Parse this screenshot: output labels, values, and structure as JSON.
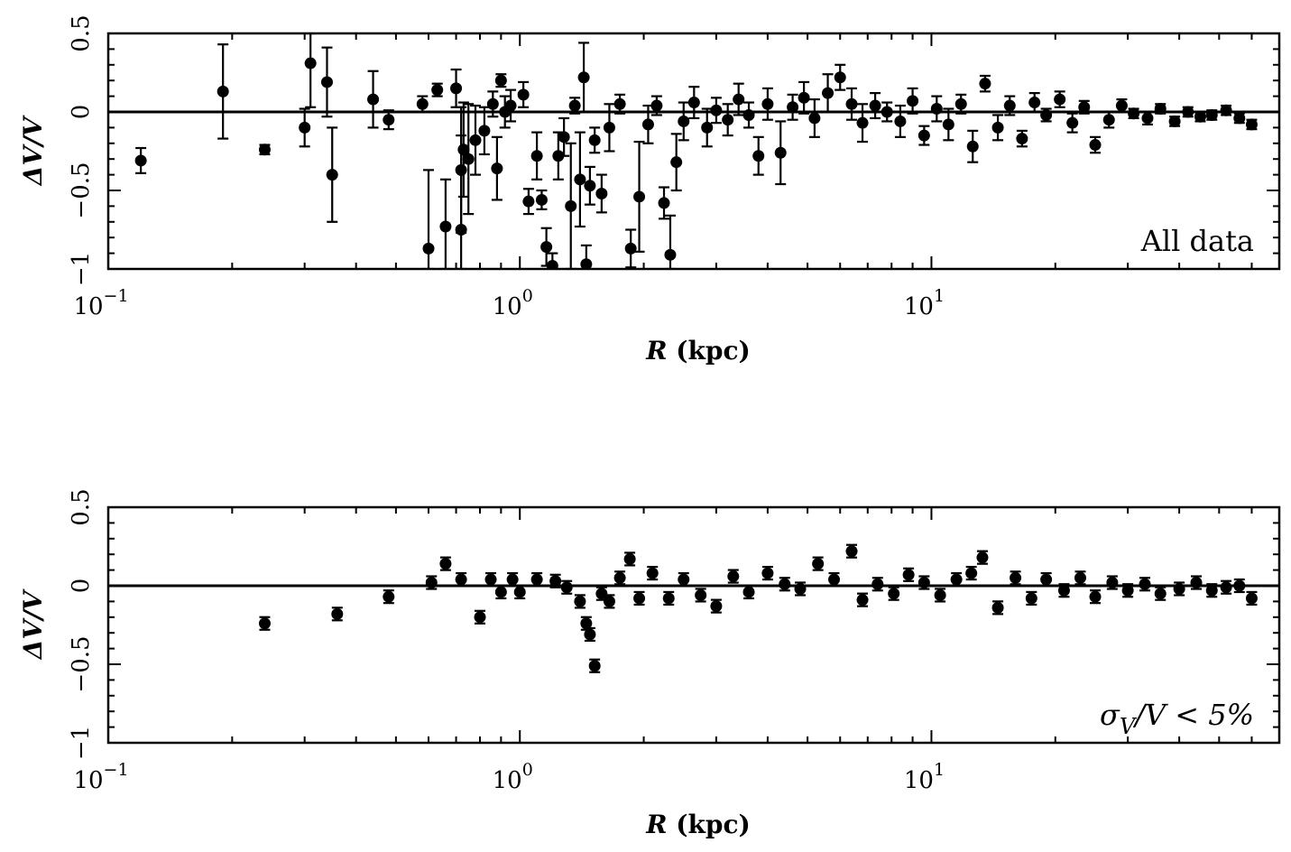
{
  "chart_data": [
    {
      "type": "scatter",
      "panel_label": "All data",
      "xlabel_var": "R",
      "xlabel_unit": "(kpc)",
      "ylabel": "ΔV/V",
      "xscale": "log",
      "xlim": [
        0.1,
        70
      ],
      "ylim": [
        -1,
        0.5
      ],
      "xticks": [
        {
          "base": "10",
          "exp": "−1"
        },
        {
          "base": "10",
          "exp": "0"
        },
        {
          "base": "10",
          "exp": "1"
        }
      ],
      "yticks": [
        "−1",
        "−0.5",
        "0",
        "0.5"
      ],
      "reference_line": 0,
      "legend": "bottom-right",
      "x": [
        0.12,
        0.19,
        0.24,
        0.3,
        0.31,
        0.34,
        0.35,
        0.44,
        0.48,
        0.58,
        0.6,
        0.63,
        0.66,
        0.7,
        0.72,
        0.72,
        0.73,
        0.75,
        0.78,
        0.82,
        0.86,
        0.88,
        0.9,
        0.92,
        0.95,
        1.02,
        1.05,
        1.1,
        1.13,
        1.16,
        1.2,
        1.24,
        1.28,
        1.33,
        1.36,
        1.4,
        1.43,
        1.45,
        1.48,
        1.52,
        1.58,
        1.65,
        1.75,
        1.86,
        1.95,
        2.05,
        2.15,
        2.24,
        2.32,
        2.4,
        2.5,
        2.65,
        2.85,
        3.0,
        3.2,
        3.4,
        3.6,
        3.8,
        4.0,
        4.3,
        4.6,
        4.9,
        5.2,
        5.6,
        6.0,
        6.4,
        6.8,
        7.3,
        7.8,
        8.4,
        9.0,
        9.6,
        10.3,
        11.0,
        11.8,
        12.6,
        13.5,
        14.5,
        15.5,
        16.6,
        17.8,
        19.0,
        20.5,
        22.0,
        23.5,
        25.0,
        27.0,
        29.0,
        31.0,
        33.5,
        36.0,
        39.0,
        42.0,
        45.0,
        48.0,
        52.0,
        56.0,
        60.0
      ],
      "y": [
        -0.31,
        0.13,
        -0.24,
        -0.1,
        0.31,
        0.19,
        -0.4,
        0.08,
        -0.05,
        0.05,
        -0.87,
        0.14,
        -0.73,
        0.15,
        -0.37,
        -0.75,
        -0.24,
        -0.3,
        -0.18,
        -0.12,
        0.05,
        -0.36,
        0.2,
        0.0,
        0.04,
        0.11,
        -0.57,
        -0.28,
        -0.56,
        -0.86,
        -0.98,
        -0.28,
        -0.16,
        -0.6,
        0.04,
        -0.43,
        0.22,
        -0.97,
        -0.47,
        -0.18,
        -0.52,
        -0.1,
        0.05,
        -0.87,
        -0.54,
        -0.08,
        0.04,
        -0.58,
        -0.91,
        -0.32,
        -0.06,
        0.06,
        -0.1,
        0.01,
        -0.05,
        0.08,
        -0.02,
        -0.28,
        0.05,
        -0.26,
        0.03,
        0.09,
        -0.04,
        0.12,
        0.22,
        0.05,
        -0.07,
        0.04,
        0.0,
        -0.06,
        0.07,
        -0.15,
        0.02,
        -0.08,
        0.05,
        -0.22,
        0.18,
        -0.1,
        0.04,
        -0.17,
        0.06,
        -0.02,
        0.08,
        -0.07,
        0.03,
        -0.21,
        -0.05,
        0.04,
        -0.01,
        -0.04,
        0.02,
        -0.06,
        0.0,
        -0.03,
        -0.02,
        0.01,
        -0.04,
        -0.08
      ],
      "yerr": [
        0.08,
        0.3,
        0.03,
        0.12,
        0.28,
        0.22,
        0.3,
        0.18,
        0.06,
        0.05,
        0.5,
        0.04,
        0.3,
        0.12,
        0.4,
        0.6,
        0.3,
        0.35,
        0.22,
        0.15,
        0.08,
        0.2,
        0.04,
        0.1,
        0.1,
        0.08,
        0.08,
        0.15,
        0.06,
        0.12,
        0.08,
        0.15,
        0.12,
        0.4,
        0.05,
        0.3,
        0.22,
        0.12,
        0.12,
        0.08,
        0.12,
        0.15,
        0.06,
        0.12,
        0.35,
        0.12,
        0.06,
        0.1,
        0.25,
        0.18,
        0.12,
        0.1,
        0.12,
        0.08,
        0.1,
        0.1,
        0.08,
        0.12,
        0.1,
        0.2,
        0.08,
        0.1,
        0.12,
        0.12,
        0.08,
        0.1,
        0.12,
        0.08,
        0.06,
        0.1,
        0.08,
        0.06,
        0.08,
        0.1,
        0.06,
        0.1,
        0.05,
        0.08,
        0.06,
        0.05,
        0.06,
        0.04,
        0.05,
        0.06,
        0.04,
        0.05,
        0.05,
        0.04,
        0.03,
        0.04,
        0.03,
        0.03,
        0.03,
        0.03,
        0.03,
        0.03,
        0.03,
        0.03
      ]
    },
    {
      "type": "scatter",
      "panel_label_sym": "σ",
      "panel_label_sub": "V",
      "panel_label_rest": "/V < 5%",
      "xlabel_var": "R",
      "xlabel_unit": "(kpc)",
      "ylabel": "ΔV/V",
      "xscale": "log",
      "xlim": [
        0.1,
        70
      ],
      "ylim": [
        -1,
        0.5
      ],
      "xticks": [
        {
          "base": "10",
          "exp": "−1"
        },
        {
          "base": "10",
          "exp": "0"
        },
        {
          "base": "10",
          "exp": "1"
        }
      ],
      "yticks": [
        "−1",
        "−0.5",
        "0",
        "0.5"
      ],
      "reference_line": 0,
      "legend": "bottom-right",
      "x": [
        0.24,
        0.36,
        0.48,
        0.61,
        0.66,
        0.72,
        0.8,
        0.85,
        0.9,
        0.96,
        1.0,
        1.1,
        1.22,
        1.3,
        1.4,
        1.45,
        1.48,
        1.52,
        1.58,
        1.65,
        1.75,
        1.85,
        1.95,
        2.1,
        2.3,
        2.5,
        2.75,
        3.0,
        3.3,
        3.6,
        4.0,
        4.4,
        4.8,
        5.3,
        5.8,
        6.4,
        6.8,
        7.4,
        8.1,
        8.8,
        9.6,
        10.5,
        11.5,
        12.5,
        13.3,
        14.5,
        16.0,
        17.5,
        19.0,
        21.0,
        23.0,
        25.0,
        27.5,
        30.0,
        33.0,
        36.0,
        40.0,
        44.0,
        48.0,
        52.0,
        56.0,
        60.0
      ],
      "y": [
        -0.24,
        -0.18,
        -0.07,
        0.02,
        0.14,
        0.04,
        -0.2,
        0.04,
        -0.04,
        0.04,
        -0.04,
        0.04,
        0.03,
        -0.01,
        -0.1,
        -0.24,
        -0.31,
        -0.51,
        -0.05,
        -0.1,
        0.05,
        0.17,
        -0.08,
        0.08,
        -0.08,
        0.04,
        -0.06,
        -0.13,
        0.06,
        -0.04,
        0.08,
        0.01,
        -0.02,
        0.14,
        0.04,
        0.22,
        -0.09,
        0.01,
        -0.05,
        0.07,
        0.02,
        -0.06,
        0.04,
        0.08,
        0.18,
        -0.14,
        0.05,
        -0.08,
        0.04,
        -0.03,
        0.05,
        -0.07,
        0.02,
        -0.03,
        0.01,
        -0.05,
        -0.02,
        0.02,
        -0.03,
        -0.01,
        0.0,
        -0.08
      ]
    }
  ]
}
